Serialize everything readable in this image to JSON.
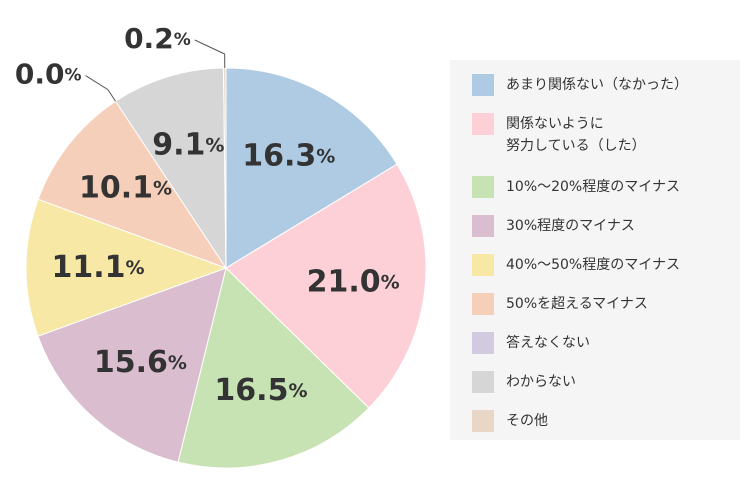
{
  "chart_data": {
    "type": "pie",
    "start": "12 o'clock",
    "direction": "clockwise",
    "legend_position": "right",
    "slices": [
      {
        "name": "あまり関係ない（なかった）",
        "value": 16.3,
        "label": "16.3",
        "color": "#afcbe3"
      },
      {
        "name": "関係ないように\n努力している（した）",
        "value": 21.0,
        "label": "21.0",
        "color": "#fdd0d7"
      },
      {
        "name": "10%〜20%程度のマイナス",
        "value": 16.5,
        "label": "16.5",
        "color": "#c7e3b4"
      },
      {
        "name": "30%程度のマイナス",
        "value": 15.6,
        "label": "15.6",
        "color": "#dabdcf"
      },
      {
        "name": "40%〜50%程度のマイナス",
        "value": 11.1,
        "label": "11.1",
        "color": "#f7e8a6"
      },
      {
        "name": "50%を超えるマイナス",
        "value": 10.1,
        "label": "10.1",
        "color": "#f5cfb9"
      },
      {
        "name": "答えなくない",
        "value": 0.0,
        "label": "0.0",
        "color": "#d2cbe0"
      },
      {
        "name": "わからない",
        "value": 9.1,
        "label": "9.1",
        "color": "#d6d6d6"
      },
      {
        "name": "その他",
        "value": 0.2,
        "label": "0.2",
        "color": "#e8d7c7"
      }
    ],
    "unit": "%"
  }
}
